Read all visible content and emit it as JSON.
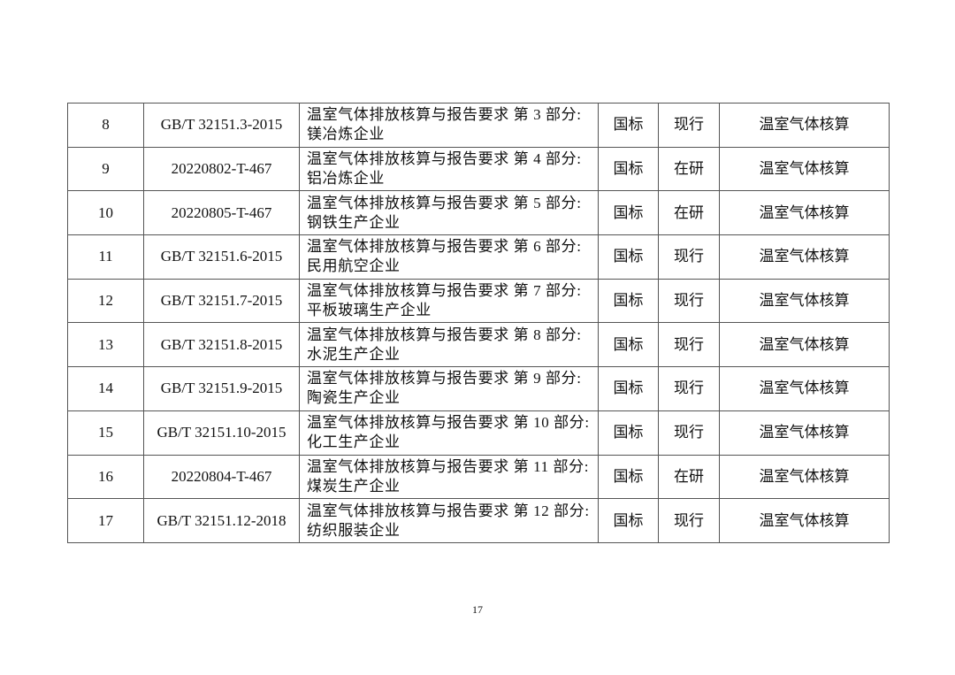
{
  "table": {
    "rows": [
      {
        "no": "8",
        "code": "GB/T 32151.3-2015",
        "title": "温室气体排放核算与报告要求 第 3 部分:镁冶炼企业",
        "type": "国标",
        "status": "现行",
        "category": "温室气体核算"
      },
      {
        "no": "9",
        "code": "20220802-T-467",
        "title": "温室气体排放核算与报告要求 第 4 部分:铝冶炼企业",
        "type": "国标",
        "status": "在研",
        "category": "温室气体核算"
      },
      {
        "no": "10",
        "code": "20220805-T-467",
        "title": "温室气体排放核算与报告要求 第 5 部分:钢铁生产企业",
        "type": "国标",
        "status": "在研",
        "category": "温室气体核算"
      },
      {
        "no": "11",
        "code": "GB/T 32151.6-2015",
        "title": "温室气体排放核算与报告要求 第 6 部分:民用航空企业",
        "type": "国标",
        "status": "现行",
        "category": "温室气体核算"
      },
      {
        "no": "12",
        "code": "GB/T 32151.7-2015",
        "title": "温室气体排放核算与报告要求 第 7 部分:平板玻璃生产企业",
        "type": "国标",
        "status": "现行",
        "category": "温室气体核算"
      },
      {
        "no": "13",
        "code": "GB/T 32151.8-2015",
        "title": "温室气体排放核算与报告要求 第 8 部分:水泥生产企业",
        "type": "国标",
        "status": "现行",
        "category": "温室气体核算"
      },
      {
        "no": "14",
        "code": "GB/T 32151.9-2015",
        "title": "温室气体排放核算与报告要求 第 9 部分:陶瓷生产企业",
        "type": "国标",
        "status": "现行",
        "category": "温室气体核算"
      },
      {
        "no": "15",
        "code": "GB/T 32151.10-2015",
        "title": "温室气体排放核算与报告要求 第 10 部分:化工生产企业",
        "type": "国标",
        "status": "现行",
        "category": "温室气体核算"
      },
      {
        "no": "16",
        "code": "20220804-T-467",
        "title": "温室气体排放核算与报告要求 第 11 部分:煤炭生产企业",
        "type": "国标",
        "status": "在研",
        "category": "温室气体核算"
      },
      {
        "no": "17",
        "code": "GB/T 32151.12-2018",
        "title": "温室气体排放核算与报告要求 第 12 部分:纺织服装企业",
        "type": "国标",
        "status": "现行",
        "category": "温室气体核算"
      }
    ]
  },
  "footer": {
    "page_number": "17"
  }
}
